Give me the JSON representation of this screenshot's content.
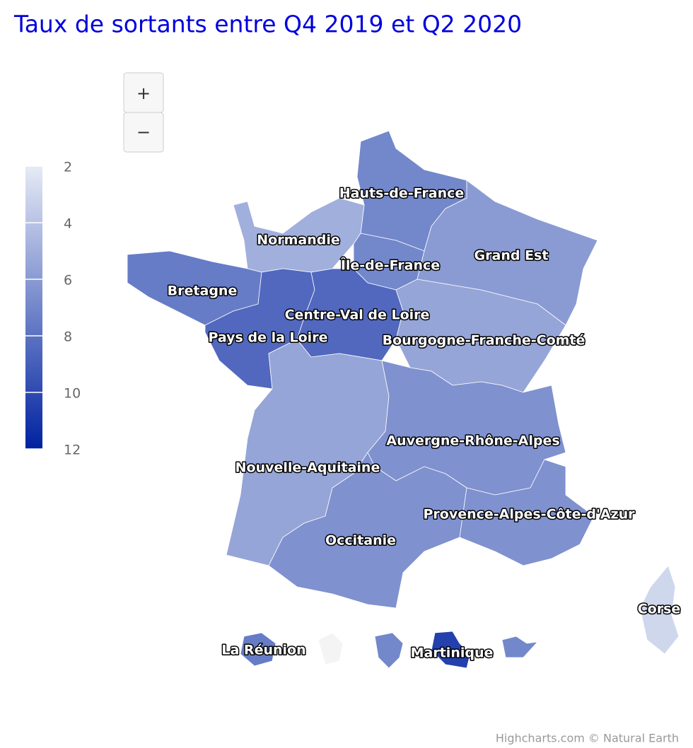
{
  "chart_data": {
    "type": "map",
    "title": "Taux de sortants entre Q4 2019 et Q2 2020",
    "zoom_in": "+",
    "zoom_out": "−",
    "regions": [
      "Hauts-de-France",
      "Normandie",
      "Île-de-France",
      "Grand Est",
      "Bretagne",
      "Pays de la Loire",
      "Centre-Val de Loire",
      "Bourgogne-Franche-Comté",
      "Nouvelle-Aquitaine",
      "Auvergne-Rhône-Alpes",
      "Occitanie",
      "Provence-Alpes-Côte-d'Azur",
      "Corse",
      "La Réunion",
      null,
      null,
      "Martinique",
      null
    ],
    "values": [
      7,
      5,
      7,
      6,
      7.5,
      8.5,
      8.5,
      5.5,
      5.5,
      6.5,
      6.5,
      6.5,
      3,
      7.5,
      null,
      7,
      10.5,
      7
    ],
    "colorlim": [
      2,
      12
    ],
    "colorticks": [
      2,
      4,
      6,
      8,
      10,
      12
    ],
    "colors": [
      "#e6ebf5",
      "#0022a0"
    ],
    "null_color": "#f4f4f4",
    "credits": "Highcharts.com © Natural Earth"
  }
}
